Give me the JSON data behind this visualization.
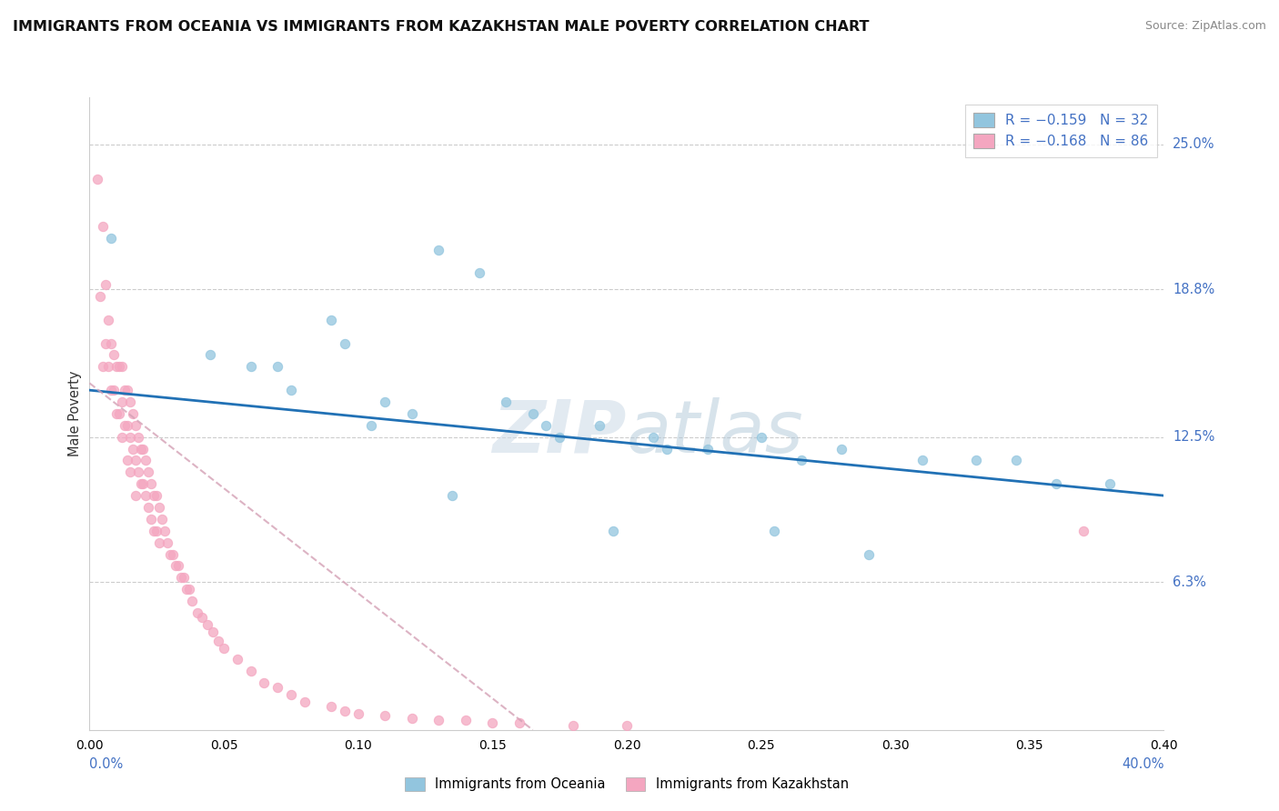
{
  "title": "IMMIGRANTS FROM OCEANIA VS IMMIGRANTS FROM KAZAKHSTAN MALE POVERTY CORRELATION CHART",
  "source": "Source: ZipAtlas.com",
  "ylabel": "Male Poverty",
  "xlim": [
    0.0,
    0.4
  ],
  "ylim": [
    0.0,
    0.27
  ],
  "watermark": "ZIPatlas",
  "legend_label_oceania": "Immigrants from Oceania",
  "legend_label_kazakhstan": "Immigrants from Kazakhstan",
  "color_oceania": "#92c5de",
  "color_kazakhstan": "#f4a6c0",
  "oceania_x": [
    0.008,
    0.13,
    0.145,
    0.09,
    0.095,
    0.07,
    0.075,
    0.11,
    0.12,
    0.155,
    0.165,
    0.17,
    0.175,
    0.19,
    0.21,
    0.215,
    0.23,
    0.25,
    0.265,
    0.28,
    0.31,
    0.33,
    0.345,
    0.38,
    0.045,
    0.06,
    0.105,
    0.135,
    0.195,
    0.255,
    0.29,
    0.36
  ],
  "oceania_y": [
    0.21,
    0.205,
    0.195,
    0.175,
    0.165,
    0.155,
    0.145,
    0.14,
    0.135,
    0.14,
    0.135,
    0.13,
    0.125,
    0.13,
    0.125,
    0.12,
    0.12,
    0.125,
    0.115,
    0.12,
    0.115,
    0.115,
    0.115,
    0.105,
    0.16,
    0.155,
    0.13,
    0.1,
    0.085,
    0.085,
    0.075,
    0.105
  ],
  "kazakhstan_x": [
    0.003,
    0.004,
    0.005,
    0.005,
    0.006,
    0.006,
    0.007,
    0.007,
    0.008,
    0.008,
    0.009,
    0.009,
    0.01,
    0.01,
    0.011,
    0.011,
    0.012,
    0.012,
    0.012,
    0.013,
    0.013,
    0.014,
    0.014,
    0.014,
    0.015,
    0.015,
    0.015,
    0.016,
    0.016,
    0.017,
    0.017,
    0.017,
    0.018,
    0.018,
    0.019,
    0.019,
    0.02,
    0.02,
    0.021,
    0.021,
    0.022,
    0.022,
    0.023,
    0.023,
    0.024,
    0.024,
    0.025,
    0.025,
    0.026,
    0.026,
    0.027,
    0.028,
    0.029,
    0.03,
    0.031,
    0.032,
    0.033,
    0.034,
    0.035,
    0.036,
    0.037,
    0.038,
    0.04,
    0.042,
    0.044,
    0.046,
    0.048,
    0.05,
    0.055,
    0.06,
    0.065,
    0.07,
    0.075,
    0.08,
    0.09,
    0.095,
    0.1,
    0.11,
    0.12,
    0.13,
    0.14,
    0.15,
    0.16,
    0.18,
    0.2,
    0.37
  ],
  "kazakhstan_y": [
    0.235,
    0.185,
    0.215,
    0.155,
    0.19,
    0.165,
    0.175,
    0.155,
    0.165,
    0.145,
    0.16,
    0.145,
    0.155,
    0.135,
    0.155,
    0.135,
    0.155,
    0.14,
    0.125,
    0.145,
    0.13,
    0.145,
    0.13,
    0.115,
    0.14,
    0.125,
    0.11,
    0.135,
    0.12,
    0.13,
    0.115,
    0.1,
    0.125,
    0.11,
    0.12,
    0.105,
    0.12,
    0.105,
    0.115,
    0.1,
    0.11,
    0.095,
    0.105,
    0.09,
    0.1,
    0.085,
    0.1,
    0.085,
    0.095,
    0.08,
    0.09,
    0.085,
    0.08,
    0.075,
    0.075,
    0.07,
    0.07,
    0.065,
    0.065,
    0.06,
    0.06,
    0.055,
    0.05,
    0.048,
    0.045,
    0.042,
    0.038,
    0.035,
    0.03,
    0.025,
    0.02,
    0.018,
    0.015,
    0.012,
    0.01,
    0.008,
    0.007,
    0.006,
    0.005,
    0.004,
    0.004,
    0.003,
    0.003,
    0.002,
    0.002,
    0.085
  ],
  "trend_oceania_x0": 0.0,
  "trend_oceania_y0": 0.145,
  "trend_oceania_x1": 0.4,
  "trend_oceania_y1": 0.1,
  "trend_kaz_x0": 0.0,
  "trend_kaz_y0": 0.148,
  "trend_kaz_x1": 0.165,
  "trend_kaz_y1": 0.0,
  "ytick_vals": [
    0.063,
    0.125,
    0.188,
    0.25
  ],
  "ytick_labels": [
    "6.3%",
    "12.5%",
    "18.8%",
    "25.0%"
  ],
  "background_color": "#ffffff",
  "grid_color": "#cccccc"
}
